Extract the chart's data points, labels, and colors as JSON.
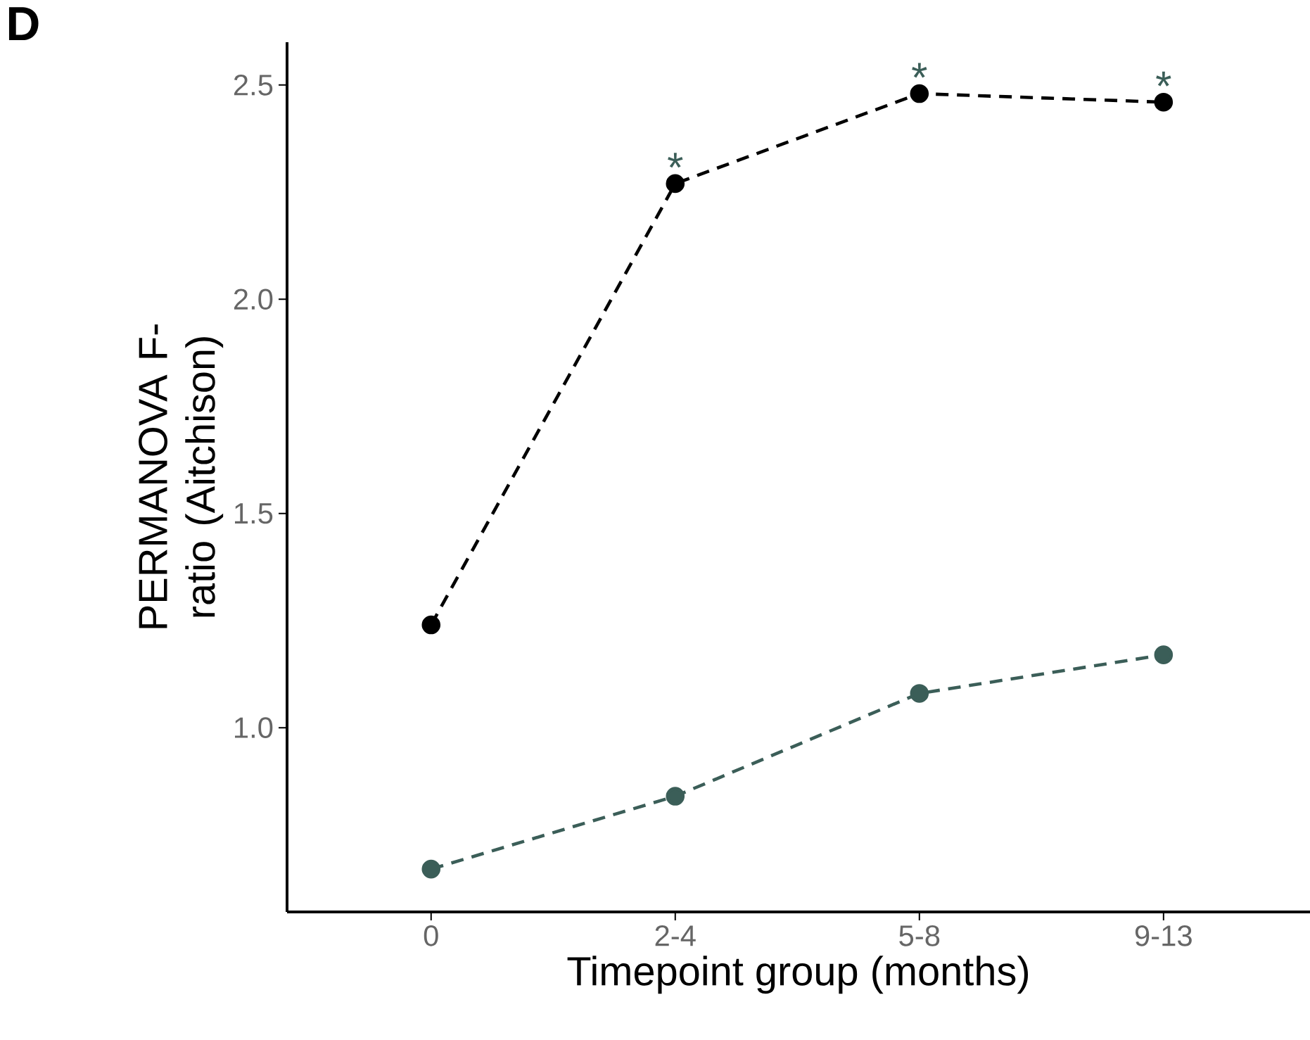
{
  "chart_data": {
    "type": "line",
    "xlabel": "Timepoint group (months)",
    "ylabel": "PERMANOVA F-ratio (Aitchison)",
    "categories": [
      "0",
      "2-4",
      "5-8",
      "9-13"
    ],
    "series": [
      {
        "color": "#000000",
        "values": [
          1.24,
          2.27,
          2.48,
          2.46
        ]
      },
      {
        "color": "#3b5e58",
        "values": [
          0.67,
          0.84,
          1.08,
          1.17
        ]
      }
    ],
    "ylim": [
      0.57,
      2.6
    ],
    "yticks": [
      {
        "value": 1.0,
        "label": "1.0"
      },
      {
        "value": 1.5,
        "label": "1.5"
      },
      {
        "value": 2.0,
        "label": "2.0"
      },
      {
        "value": 2.5,
        "label": "2.5"
      }
    ],
    "grid": false,
    "marker": "circle",
    "line_style": "dashed",
    "annotations": [
      "D",
      {
        "text": "*",
        "x": "2-4",
        "y": 2.27
      },
      {
        "text": "*",
        "x": "5-8",
        "y": 2.48
      },
      {
        "text": "*",
        "x": "9-13",
        "y": 2.46
      }
    ]
  }
}
